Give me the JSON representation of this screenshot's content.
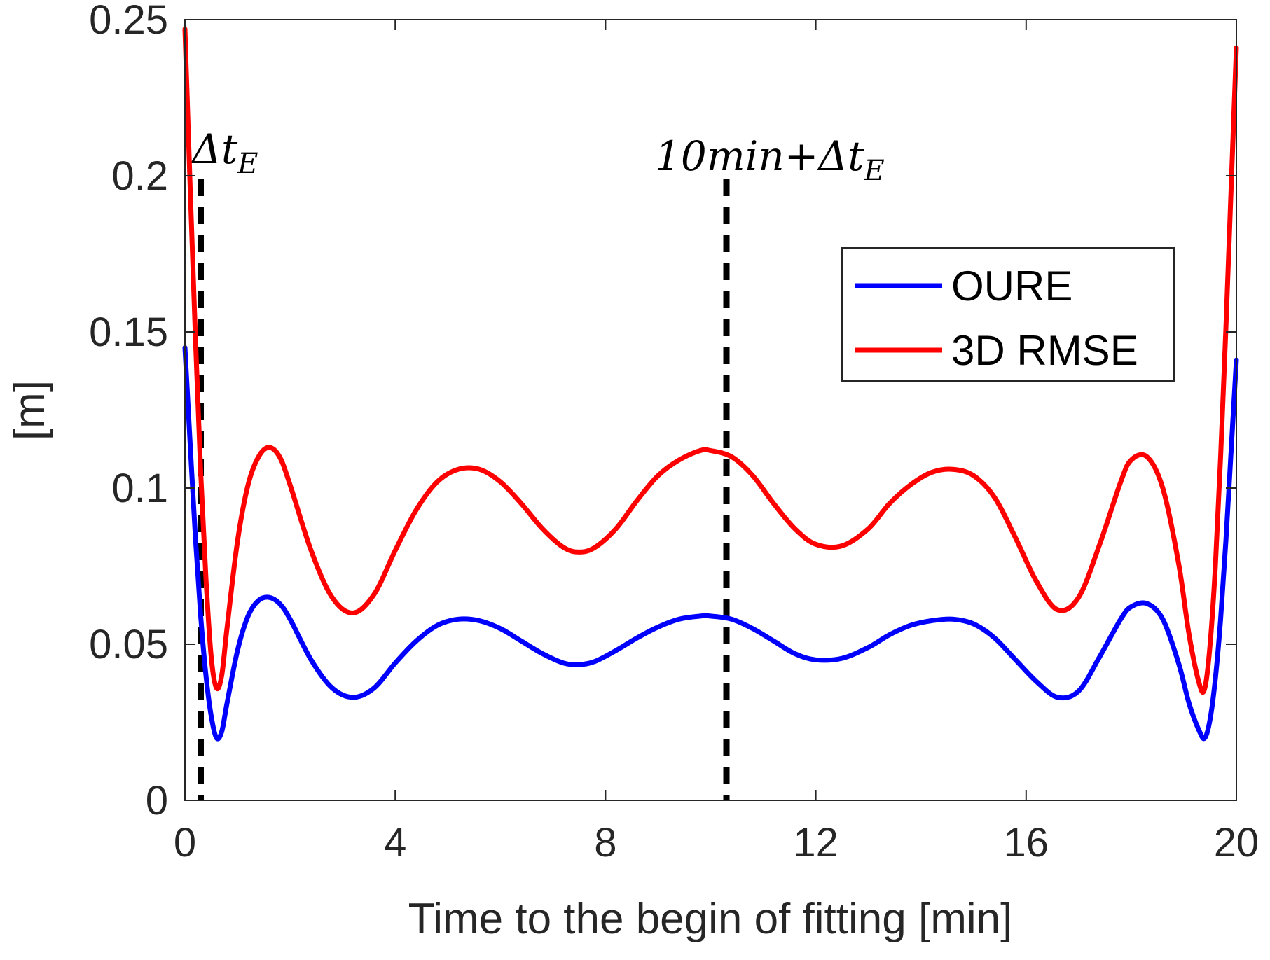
{
  "chart_data": {
    "type": "line",
    "title": "",
    "xlabel": "Time to the begin of fitting [min]",
    "ylabel": "[m]",
    "xlim": [
      0,
      20
    ],
    "ylim": [
      0,
      0.25
    ],
    "xticks": [
      0,
      4,
      8,
      12,
      16,
      20
    ],
    "xtick_labels": [
      "0",
      "4",
      "8",
      "12",
      "16",
      "20"
    ],
    "yticks": [
      0,
      0.05,
      0.1,
      0.15,
      0.2,
      0.25
    ],
    "ytick_labels": [
      "0",
      "0.05",
      "0.1",
      "0.15",
      "0.2",
      "0.25"
    ],
    "grid": false,
    "legend_position": "upper-right",
    "series": [
      {
        "name": "OURE",
        "color": "#0000FF",
        "x": [
          0.0,
          0.1,
          0.2,
          0.3,
          0.4,
          0.5,
          0.6,
          0.7,
          0.8,
          1.0,
          1.2,
          1.4,
          1.6,
          1.8,
          2.0,
          2.4,
          2.8,
          3.2,
          3.6,
          4.0,
          4.4,
          4.8,
          5.2,
          5.6,
          6.0,
          6.4,
          6.8,
          7.2,
          7.5,
          7.8,
          8.2,
          8.6,
          9.0,
          9.4,
          9.8,
          10.0,
          10.4,
          10.8,
          11.2,
          11.6,
          12.0,
          12.5,
          13.0,
          13.4,
          13.8,
          14.2,
          14.6,
          15.0,
          15.4,
          15.8,
          16.2,
          16.6,
          17.0,
          17.4,
          17.8,
          18.0,
          18.3,
          18.6,
          18.9,
          19.1,
          19.3,
          19.4,
          19.5,
          19.6,
          19.7,
          19.8,
          19.9,
          20.0
        ],
        "y": [
          0.145,
          0.114,
          0.084,
          0.059,
          0.04,
          0.027,
          0.02,
          0.022,
          0.031,
          0.048,
          0.059,
          0.064,
          0.065,
          0.063,
          0.058,
          0.045,
          0.036,
          0.033,
          0.036,
          0.044,
          0.051,
          0.056,
          0.058,
          0.0575,
          0.055,
          0.051,
          0.047,
          0.044,
          0.0435,
          0.0445,
          0.048,
          0.052,
          0.0555,
          0.058,
          0.059,
          0.059,
          0.058,
          0.055,
          0.051,
          0.047,
          0.045,
          0.0455,
          0.049,
          0.053,
          0.056,
          0.0575,
          0.058,
          0.0565,
          0.052,
          0.045,
          0.038,
          0.033,
          0.035,
          0.046,
          0.058,
          0.062,
          0.063,
          0.058,
          0.044,
          0.031,
          0.022,
          0.02,
          0.026,
          0.039,
          0.058,
          0.083,
          0.112,
          0.141
        ]
      },
      {
        "name": "3D RMSE",
        "color": "#FF0000",
        "x": [
          0.0,
          0.1,
          0.2,
          0.3,
          0.4,
          0.5,
          0.6,
          0.7,
          0.8,
          1.0,
          1.2,
          1.4,
          1.6,
          1.8,
          2.0,
          2.4,
          2.8,
          3.2,
          3.6,
          4.0,
          4.4,
          4.8,
          5.2,
          5.6,
          6.0,
          6.4,
          6.8,
          7.2,
          7.5,
          7.8,
          8.2,
          8.6,
          9.0,
          9.4,
          9.8,
          10.0,
          10.4,
          10.8,
          11.2,
          11.6,
          12.0,
          12.5,
          13.0,
          13.4,
          13.8,
          14.2,
          14.6,
          15.0,
          15.4,
          15.8,
          16.2,
          16.6,
          17.0,
          17.4,
          17.8,
          18.0,
          18.3,
          18.6,
          18.9,
          19.1,
          19.3,
          19.4,
          19.5,
          19.6,
          19.7,
          19.8,
          19.9,
          20.0
        ],
        "y": [
          0.247,
          0.196,
          0.148,
          0.105,
          0.071,
          0.046,
          0.036,
          0.04,
          0.055,
          0.083,
          0.101,
          0.11,
          0.113,
          0.11,
          0.101,
          0.08,
          0.065,
          0.06,
          0.066,
          0.08,
          0.093,
          0.102,
          0.106,
          0.106,
          0.102,
          0.095,
          0.087,
          0.081,
          0.0795,
          0.081,
          0.087,
          0.096,
          0.104,
          0.109,
          0.112,
          0.112,
          0.11,
          0.104,
          0.095,
          0.087,
          0.082,
          0.0815,
          0.087,
          0.095,
          0.101,
          0.105,
          0.106,
          0.104,
          0.097,
          0.084,
          0.07,
          0.061,
          0.065,
          0.082,
          0.102,
          0.109,
          0.11,
          0.1,
          0.076,
          0.053,
          0.037,
          0.036,
          0.05,
          0.075,
          0.11,
          0.151,
          0.196,
          0.241
        ]
      }
    ],
    "annotations": [
      {
        "x": 0.3,
        "text_main": "Δt",
        "text_sub": "E",
        "style": "dashed-vertical",
        "color": "#000000"
      },
      {
        "x": 10.3,
        "text_main": "10min+Δt",
        "text_sub": "E",
        "style": "dashed-vertical",
        "color": "#000000"
      }
    ]
  }
}
